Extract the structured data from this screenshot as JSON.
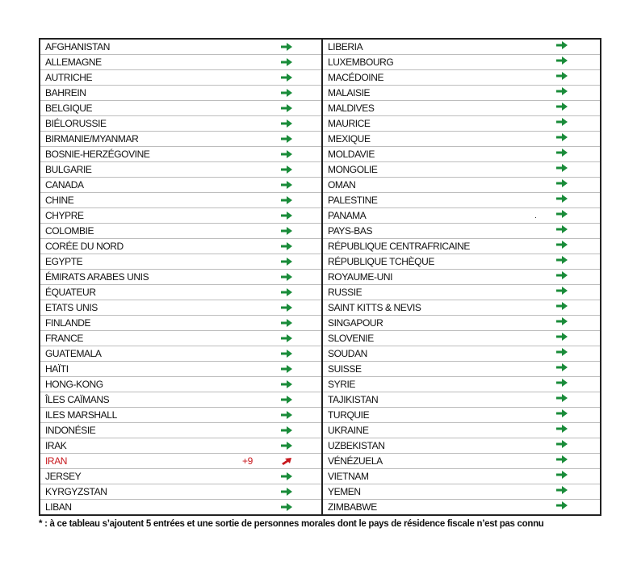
{
  "colors": {
    "neutral_arrow": "#1a8c3a",
    "increase": "#c8191e"
  },
  "left_column": [
    {
      "name": "AFGHANISTAN",
      "trend": "stable"
    },
    {
      "name": "ALLEMAGNE",
      "trend": "stable"
    },
    {
      "name": "AUTRICHE",
      "trend": "stable"
    },
    {
      "name": "BAHREIN",
      "trend": "stable"
    },
    {
      "name": "BELGIQUE",
      "trend": "stable"
    },
    {
      "name": "BIÉLORUSSIE",
      "trend": "stable"
    },
    {
      "name": "BIRMANIE/MYANMAR",
      "trend": "stable"
    },
    {
      "name": "BOSNIE-HERZÉGOVINE",
      "trend": "stable"
    },
    {
      "name": "BULGARIE",
      "trend": "stable"
    },
    {
      "name": "CANADA",
      "trend": "stable"
    },
    {
      "name": "CHINE",
      "trend": "stable"
    },
    {
      "name": "CHYPRE",
      "trend": "stable"
    },
    {
      "name": "COLOMBIE",
      "trend": "stable"
    },
    {
      "name": "CORÉE DU NORD",
      "trend": "stable"
    },
    {
      "name": "EGYPTE",
      "trend": "stable"
    },
    {
      "name": "ÉMIRATS ARABES UNIS",
      "trend": "stable"
    },
    {
      "name": "ÉQUATEUR",
      "trend": "stable"
    },
    {
      "name": "ETATS UNIS",
      "trend": "stable"
    },
    {
      "name": "FINLANDE",
      "trend": "stable"
    },
    {
      "name": "FRANCE",
      "trend": "stable"
    },
    {
      "name": "GUATEMALA",
      "trend": "stable"
    },
    {
      "name": "HAÏTI",
      "trend": "stable"
    },
    {
      "name": "HONG-KONG",
      "trend": "stable"
    },
    {
      "name": "ÎLES CAÏMANS",
      "trend": "stable"
    },
    {
      "name": "ILES MARSHALL",
      "trend": "stable"
    },
    {
      "name": "INDONÉSIE",
      "trend": "stable"
    },
    {
      "name": "IRAK",
      "trend": "stable"
    },
    {
      "name": "IRAN",
      "trend": "up",
      "delta": "+9"
    },
    {
      "name": "JERSEY",
      "trend": "stable"
    },
    {
      "name": "KYRGYZSTAN",
      "trend": "stable"
    },
    {
      "name": "LIBAN",
      "trend": "stable"
    }
  ],
  "right_column": [
    {
      "name": "LIBERIA",
      "trend": "stable"
    },
    {
      "name": "LUXEMBOURG",
      "trend": "stable"
    },
    {
      "name": "MACÉDOINE",
      "trend": "stable"
    },
    {
      "name": "MALAISIE",
      "trend": "stable"
    },
    {
      "name": "MALDIVES",
      "trend": "stable"
    },
    {
      "name": "MAURICE",
      "trend": "stable"
    },
    {
      "name": "MEXIQUE",
      "trend": "stable"
    },
    {
      "name": "MOLDAVIE",
      "trend": "stable"
    },
    {
      "name": "MONGOLIE",
      "trend": "stable"
    },
    {
      "name": "OMAN",
      "trend": "stable"
    },
    {
      "name": "PALESTINE",
      "trend": "stable"
    },
    {
      "name": "PANAMA",
      "trend": "stable",
      "mark": "."
    },
    {
      "name": "PAYS-BAS",
      "trend": "stable"
    },
    {
      "name": "RÉPUBLIQUE CENTRAFRICAINE",
      "trend": "stable"
    },
    {
      "name": "RÉPUBLIQUE TCHÈQUE",
      "trend": "stable"
    },
    {
      "name": "ROYAUME-UNI",
      "trend": "stable"
    },
    {
      "name": "RUSSIE",
      "trend": "stable"
    },
    {
      "name": "SAINT KITTS & NEVIS",
      "trend": "stable"
    },
    {
      "name": "SINGAPOUR",
      "trend": "stable"
    },
    {
      "name": "SLOVENIE",
      "trend": "stable"
    },
    {
      "name": "SOUDAN",
      "trend": "stable"
    },
    {
      "name": "SUISSE",
      "trend": "stable"
    },
    {
      "name": "SYRIE",
      "trend": "stable"
    },
    {
      "name": "TAJIKISTAN",
      "trend": "stable"
    },
    {
      "name": "TURQUIE",
      "trend": "stable"
    },
    {
      "name": "UKRAINE",
      "trend": "stable"
    },
    {
      "name": "UZBEKISTAN",
      "trend": "stable"
    },
    {
      "name": "VÉNÉZUELA",
      "trend": "stable"
    },
    {
      "name": "VIETNAM",
      "trend": "stable"
    },
    {
      "name": "YEMEN",
      "trend": "stable"
    },
    {
      "name": "ZIMBABWE",
      "trend": "stable"
    }
  ],
  "footnote": "* : à ce tableau s’ajoutent 5 entrées et une sortie de personnes morales dont le pays de résidence fiscale n’est pas connu"
}
